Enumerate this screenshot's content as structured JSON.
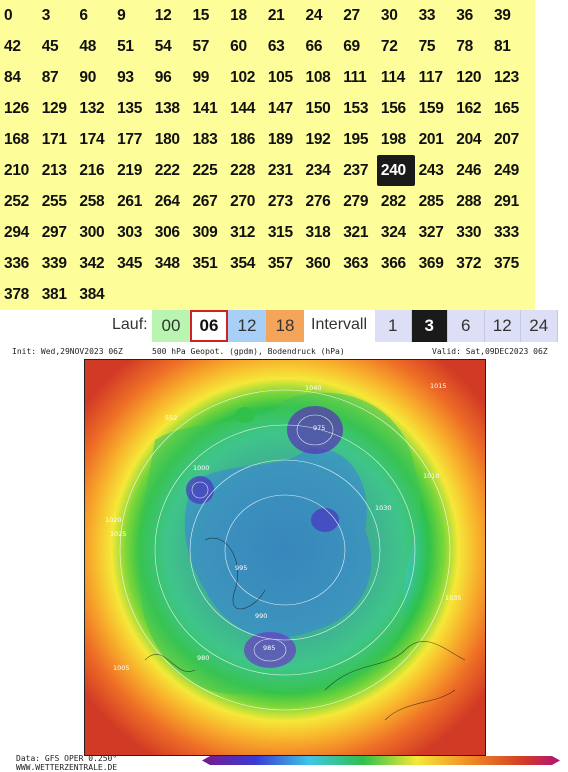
{
  "forecast_hours": {
    "rows": [
      [
        "0",
        "3",
        "6",
        "9",
        "12",
        "15",
        "18",
        "21",
        "24",
        "27",
        "30",
        "33",
        "36",
        "39"
      ],
      [
        "42",
        "45",
        "48",
        "51",
        "54",
        "57",
        "60",
        "63",
        "66",
        "69",
        "72",
        "75",
        "78",
        "81"
      ],
      [
        "84",
        "87",
        "90",
        "93",
        "96",
        "99",
        "102",
        "105",
        "108",
        "111",
        "114",
        "117",
        "120",
        "123"
      ],
      [
        "126",
        "129",
        "132",
        "135",
        "138",
        "141",
        "144",
        "147",
        "150",
        "153",
        "156",
        "159",
        "162",
        "165"
      ],
      [
        "168",
        "171",
        "174",
        "177",
        "180",
        "183",
        "186",
        "189",
        "192",
        "195",
        "198",
        "201",
        "204",
        "207"
      ],
      [
        "210",
        "213",
        "216",
        "219",
        "222",
        "225",
        "228",
        "231",
        "234",
        "237",
        "240",
        "243",
        "246",
        "249"
      ],
      [
        "252",
        "255",
        "258",
        "261",
        "264",
        "267",
        "270",
        "273",
        "276",
        "279",
        "282",
        "285",
        "288",
        "291"
      ],
      [
        "294",
        "297",
        "300",
        "303",
        "306",
        "309",
        "312",
        "315",
        "318",
        "321",
        "324",
        "327",
        "330",
        "333"
      ],
      [
        "336",
        "339",
        "342",
        "345",
        "348",
        "351",
        "354",
        "357",
        "360",
        "363",
        "366",
        "369",
        "372",
        "375"
      ],
      [
        "378",
        "381",
        "384"
      ]
    ],
    "selected": "240"
  },
  "controls": {
    "lauf_label": "Lauf:",
    "lauf_options": [
      "00",
      "06",
      "12",
      "18"
    ],
    "lauf_selected": "06",
    "intervall_label": "Intervall",
    "intervall_options": [
      "1",
      "3",
      "6",
      "12",
      "24"
    ],
    "intervall_selected": "3"
  },
  "map_header": {
    "init": "Init: Wed,29NOV2023 06Z",
    "title": "500 hPa Geopot. (gpdm), Bodendruck (hPa)",
    "valid": "Valid: Sat,09DEC2023 06Z"
  },
  "map_labels": [
    "1020",
    "1025",
    "1015",
    "1010",
    "1005",
    "1000",
    "995",
    "990",
    "985",
    "980",
    "975",
    "1030",
    "1035",
    "1040",
    "552"
  ],
  "footer": {
    "line1": "Data: GFS OPER 0.250°",
    "line2": "WWW.WETTERZENTRALE.DE"
  },
  "colors": {
    "hours_bg": "#fdfd9a",
    "selected_bg": "#1a1a1a",
    "lauf_00": "#b9f5b0",
    "lauf_06_border": "#cc2222",
    "lauf_12": "#a8cff5",
    "lauf_18": "#f5a55a",
    "intervall_bg": "#dcdff5"
  }
}
